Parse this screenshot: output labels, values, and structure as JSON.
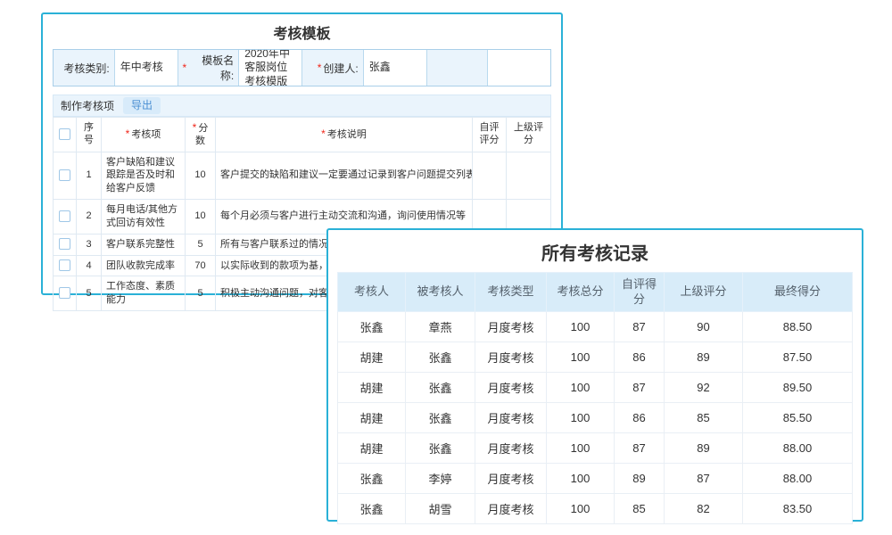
{
  "misc": {
    "required_marker": "*"
  },
  "colors": {
    "panel_border": "#2ab1d7",
    "label_bg": "#eaf4fc",
    "records_header_bg": "#d8ecf9",
    "export_button_bg": "#d8ebfa",
    "export_button_text": "#4a8fd3",
    "required_red": "#f0261a"
  },
  "template_panel": {
    "title": "考核模板",
    "form": {
      "fields": [
        {
          "label": "考核类别:",
          "required": false,
          "value": "年中考核"
        },
        {
          "label": "模板名称:",
          "required": true,
          "value": "2020年中客服岗位考核模版"
        },
        {
          "label": "创建人:",
          "required": true,
          "value": "张鑫"
        },
        {
          "label": "",
          "required": false,
          "value": ""
        }
      ]
    },
    "toolbar": {
      "tab_label": "制作考核项",
      "export_label": "导出"
    },
    "table": {
      "headers": {
        "seq": "序号",
        "item": "考核项",
        "score": "分数",
        "desc": "考核说明",
        "self_score": "自评评分",
        "superior_score": "上级评分"
      },
      "rows": [
        {
          "no": "1",
          "item": "客户缺陷和建议跟踪是否及时和给客户反馈",
          "score": "10",
          "desc": "客户提交的缺陷和建议一定要通过记录到客户问题提交列表",
          "self": "",
          "superior": ""
        },
        {
          "no": "2",
          "item": "每月电话/其他方式回访有效性",
          "score": "10",
          "desc": "每个月必须与客户进行主动交流和沟通，询问使用情况等",
          "self": "",
          "superior": ""
        },
        {
          "no": "3",
          "item": "客户联系完整性",
          "score": "5",
          "desc": "所有与客户联系过的情况都需要记录到客户卡片",
          "self": "",
          "superior": ""
        },
        {
          "no": "4",
          "item": "团队收款完成率",
          "score": "70",
          "desc": "以实际收到的款项为基，并不以有效回款",
          "self": "",
          "superior": ""
        },
        {
          "no": "5",
          "item": "工作态度、素质能力",
          "score": "5",
          "desc": "积极主动沟通问题，对客户热情真诚",
          "self": "",
          "superior": ""
        }
      ]
    }
  },
  "records_panel": {
    "title": "所有考核记录",
    "headers": [
      "考核人",
      "被考核人",
      "考核类型",
      "考核总分",
      "自评得分",
      "上级评分",
      "最终得分"
    ],
    "rows": [
      [
        "张鑫",
        "章燕",
        "月度考核",
        "100",
        "87",
        "90",
        "88.50"
      ],
      [
        "胡建",
        "张鑫",
        "月度考核",
        "100",
        "86",
        "89",
        "87.50"
      ],
      [
        "胡建",
        "张鑫",
        "月度考核",
        "100",
        "87",
        "92",
        "89.50"
      ],
      [
        "胡建",
        "张鑫",
        "月度考核",
        "100",
        "86",
        "85",
        "85.50"
      ],
      [
        "胡建",
        "张鑫",
        "月度考核",
        "100",
        "87",
        "89",
        "88.00"
      ],
      [
        "张鑫",
        "李婷",
        "月度考核",
        "100",
        "89",
        "87",
        "88.00"
      ],
      [
        "张鑫",
        "胡雪",
        "月度考核",
        "100",
        "85",
        "82",
        "83.50"
      ]
    ]
  }
}
